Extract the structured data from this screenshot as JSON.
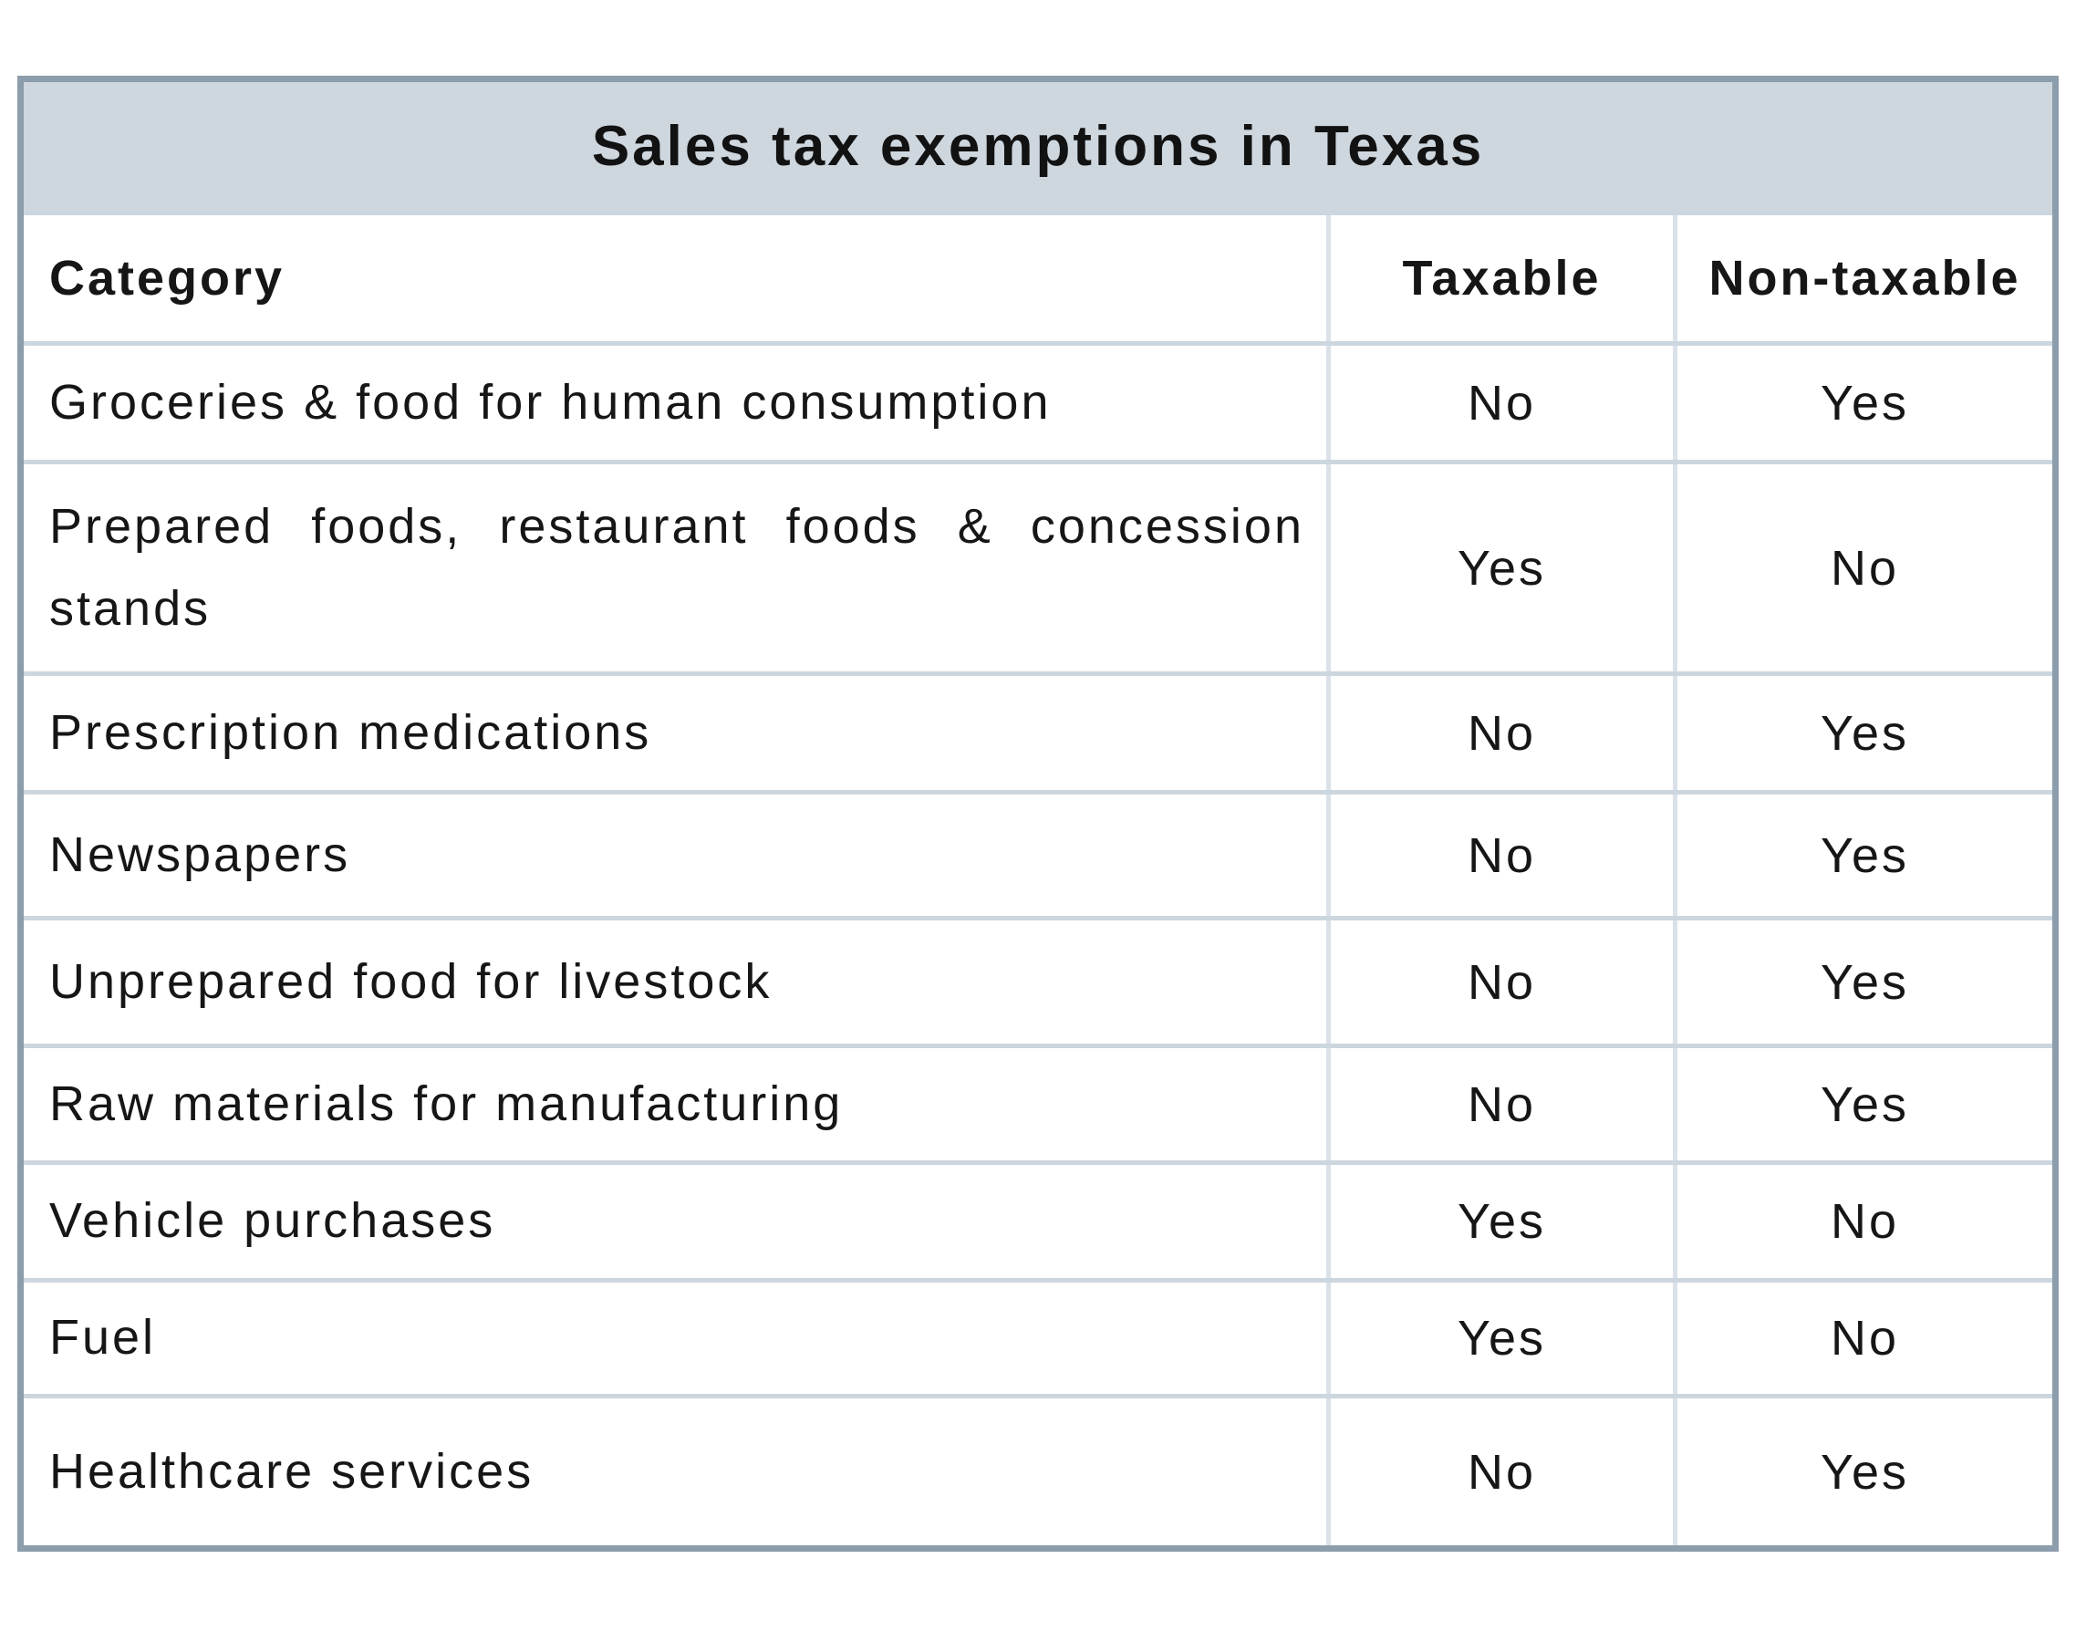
{
  "chart_data": {
    "type": "table",
    "title": "Sales tax exemptions in Texas",
    "columns": [
      "Category",
      "Taxable",
      "Non-taxable"
    ],
    "rows": [
      [
        "Groceries & food for human consumption",
        "No",
        "Yes"
      ],
      [
        "Prepared foods, restaurant foods & concession stands",
        "Yes",
        "No"
      ],
      [
        "Prescription medications",
        "No",
        "Yes"
      ],
      [
        "Newspapers",
        "No",
        "Yes"
      ],
      [
        "Unprepared food for livestock",
        "No",
        "Yes"
      ],
      [
        "Raw materials for manufacturing",
        "No",
        "Yes"
      ],
      [
        "Vehicle purchases",
        "Yes",
        "No"
      ],
      [
        "Fuel",
        "Yes",
        "No"
      ],
      [
        "Healthcare services",
        "No",
        "Yes"
      ]
    ]
  },
  "colors": {
    "title_band": "#ced6de",
    "outer_border": "#8c9dac",
    "grid_line_horizontal": "#ccd6de",
    "grid_line_vertical": "#dbe1e8",
    "text": "#161616",
    "background": "#ffffff"
  }
}
